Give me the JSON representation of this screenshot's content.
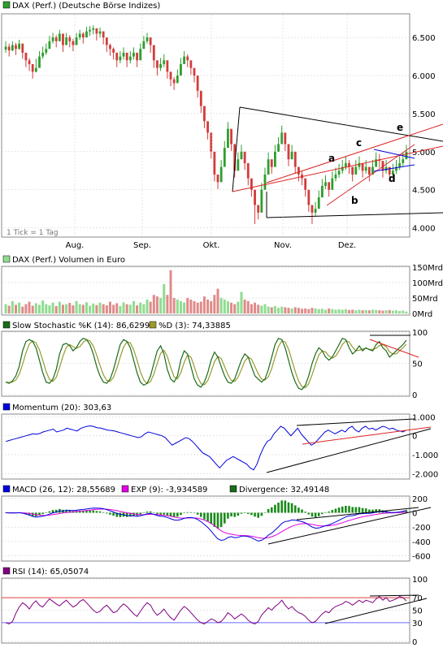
{
  "colors": {
    "up": "#2e9e2e",
    "down": "#d23c3c",
    "volume_up": "#8fdc8f",
    "volume_down": "#e08a8a",
    "stoch_k": "#1a6b1a",
    "stoch_d": "#9a9a2e",
    "blue": "#0000dd",
    "magenta": "#e000e0",
    "purple": "#800080",
    "trend": "#000000",
    "trend_red": "#dd2222",
    "rsi_70": "#e04040",
    "rsi_30": "#6a6aff",
    "grid": "#cccccc"
  },
  "chart_data": [
    {
      "type": "candlestick",
      "legend": "DAX (Perf.) (Deutsche Börse Indizes)",
      "note": "1 Tick = 1 Tag",
      "x_labels": [
        "Aug.",
        "Sep.",
        "Okt.",
        "Nov.",
        "Dez."
      ],
      "y_ticks": [
        "6.500",
        "6.000",
        "5.500",
        "5.000",
        "4.500",
        "4.000"
      ],
      "ylim": [
        3900,
        6800
      ],
      "annotations": [
        "a",
        "b",
        "c",
        "d",
        "e"
      ],
      "close": [
        6380,
        6330,
        6400,
        6350,
        6420,
        6300,
        6200,
        6150,
        6050,
        6100,
        6250,
        6300,
        6350,
        6450,
        6500,
        6450,
        6550,
        6400,
        6500,
        6450,
        6400,
        6500,
        6550,
        6500,
        6580,
        6600,
        6620,
        6550,
        6580,
        6500,
        6400,
        6350,
        6300,
        6200,
        6250,
        6300,
        6200,
        6250,
        6300,
        6200,
        6350,
        6450,
        6500,
        6400,
        6200,
        6100,
        6150,
        6200,
        6050,
        5950,
        5900,
        6000,
        6150,
        6250,
        6200,
        6100,
        6000,
        5800,
        5600,
        5400,
        5250,
        5000,
        4700,
        4600,
        4800,
        5050,
        5300,
        5100,
        4750,
        4900,
        5000,
        4850,
        4650,
        4500,
        4300,
        4200,
        4500,
        4700,
        4900,
        4800,
        5000,
        5100,
        5250,
        5100,
        4900,
        5000,
        4800,
        4700,
        4650,
        4500,
        4300,
        4200,
        4250,
        4400,
        4550,
        4600,
        4500,
        4650,
        4700,
        4750,
        4800,
        4850,
        4800,
        4700,
        4800,
        4850,
        4750,
        4800,
        4700,
        4800,
        4900,
        4880,
        4750,
        4800,
        4700,
        4750,
        4800,
        4850,
        4900,
        5000
      ],
      "high": [
        6450,
        6420,
        6450,
        6430,
        6470,
        6400,
        6280,
        6230,
        6130,
        6220,
        6320,
        6380,
        6420,
        6520,
        6560,
        6530,
        6600,
        6500,
        6560,
        6530,
        6480,
        6560,
        6600,
        6570,
        6640,
        6650,
        6660,
        6620,
        6630,
        6580,
        6480,
        6420,
        6370,
        6290,
        6320,
        6370,
        6280,
        6320,
        6370,
        6280,
        6420,
        6520,
        6560,
        6490,
        6290,
        6180,
        6230,
        6280,
        6130,
        6030,
        5980,
        6080,
        6230,
        6320,
        6280,
        6180,
        6080,
        5890,
        5690,
        5490,
        5340,
        5090,
        4790,
        4690,
        4890,
        5140,
        5390,
        5190,
        4840,
        4990,
        5090,
        4940,
        4740,
        4590,
        4390,
        4290,
        4590,
        4790,
        4990,
        4890,
        5090,
        5190,
        5340,
        5190,
        4990,
        5090,
        4890,
        4790,
        4740,
        4590,
        4390,
        4290,
        4340,
        4490,
        4640,
        4690,
        4590,
        4740,
        4790,
        4840,
        4890,
        4940,
        4890,
        4790,
        4890,
        4940,
        4840,
        4890,
        4790,
        4890,
        4990,
        4970,
        4840,
        4890,
        4790,
        4840,
        4890,
        4940,
        4990,
        5090
      ],
      "low": [
        6300,
        6250,
        6320,
        6270,
        6340,
        6220,
        6110,
        6060,
        5960,
        6040,
        6160,
        6220,
        6270,
        6370,
        6420,
        6370,
        6470,
        6310,
        6420,
        6370,
        6320,
        6410,
        6470,
        6420,
        6500,
        6520,
        6540,
        6460,
        6500,
        6410,
        6310,
        6260,
        6210,
        6110,
        6160,
        6210,
        6110,
        6160,
        6210,
        6110,
        6260,
        6360,
        6420,
        6300,
        6100,
        6000,
        6060,
        6110,
        5960,
        5860,
        5810,
        5910,
        6060,
        6160,
        6110,
        6010,
        5910,
        5710,
        5510,
        5310,
        5160,
        4910,
        4610,
        4510,
        4710,
        4960,
        5210,
        5010,
        4660,
        4810,
        4910,
        4760,
        4560,
        4410,
        4050,
        4110,
        4410,
        4610,
        4810,
        4710,
        4910,
        5010,
        5160,
        5010,
        4810,
        4910,
        4710,
        4610,
        4560,
        4410,
        4210,
        4050,
        4160,
        4310,
        4460,
        4510,
        4410,
        4560,
        4610,
        4660,
        4710,
        4760,
        4710,
        4610,
        4710,
        4760,
        4660,
        4710,
        4610,
        4710,
        4810,
        4790,
        4660,
        4710,
        4610,
        4660,
        4710,
        4760,
        4810,
        4910
      ]
    },
    {
      "type": "bar",
      "legend": "DAX (Perf.) Volumen in Euro",
      "y_ticks": [
        "150Mrd",
        "100Mrd",
        "50Mrd",
        "0Mrd"
      ],
      "ylim": [
        0,
        150
      ],
      "values": [
        30,
        25,
        40,
        28,
        35,
        22,
        30,
        38,
        25,
        33,
        28,
        42,
        30,
        26,
        35,
        24,
        38,
        28,
        30,
        34,
        26,
        40,
        30,
        28,
        36,
        25,
        32,
        27,
        35,
        30,
        26,
        38,
        28,
        33,
        24,
        36,
        30,
        28,
        40,
        26,
        35,
        30,
        45,
        38,
        60,
        55,
        50,
        95,
        60,
        140,
        50,
        45,
        40,
        35,
        50,
        45,
        40,
        35,
        38,
        55,
        45,
        40,
        60,
        80,
        50,
        45,
        40,
        35,
        30,
        38,
        70,
        45,
        40,
        30,
        35,
        28,
        25,
        30,
        22,
        20,
        24,
        18,
        22,
        20,
        18,
        16,
        20,
        18,
        15,
        16,
        14,
        18,
        16,
        14,
        15,
        12,
        16,
        14,
        12,
        13,
        12,
        14,
        11,
        12,
        10,
        12,
        10,
        11,
        10,
        12,
        11,
        10,
        9,
        10,
        11,
        9,
        10,
        8,
        9,
        6
      ]
    },
    {
      "type": "line",
      "legend_k": "Slow Stochastic %K (14): 86,6299",
      "legend_d": "%D (3): 74,33885",
      "y_ticks": [
        "100",
        "50",
        "0"
      ],
      "ylim": [
        0,
        100
      ],
      "series_k": [
        20,
        18,
        22,
        30,
        45,
        70,
        85,
        88,
        85,
        75,
        55,
        35,
        20,
        18,
        25,
        40,
        65,
        80,
        82,
        78,
        70,
        75,
        85,
        90,
        88,
        80,
        65,
        45,
        30,
        20,
        18,
        25,
        40,
        60,
        80,
        88,
        85,
        75,
        55,
        35,
        20,
        15,
        18,
        30,
        50,
        70,
        78,
        65,
        40,
        25,
        20,
        30,
        55,
        70,
        65,
        45,
        25,
        15,
        12,
        20,
        35,
        55,
        68,
        60,
        45,
        30,
        20,
        18,
        25,
        40,
        55,
        65,
        60,
        45,
        30,
        25,
        20,
        25,
        40,
        60,
        80,
        90,
        88,
        75,
        55,
        35,
        20,
        10,
        8,
        15,
        30,
        50,
        65,
        75,
        70,
        60,
        55,
        60,
        70,
        80,
        90,
        88,
        75,
        65,
        70,
        78,
        70,
        75,
        72,
        70,
        80,
        85,
        75,
        70,
        60,
        65,
        70,
        75,
        80,
        87
      ]
    },
    {
      "type": "line",
      "legend": "Momentum (20): 303,63",
      "y_ticks": [
        "1.000",
        "0",
        "-1.000",
        "-2.000"
      ],
      "ylim": [
        -2200,
        1100
      ],
      "values": [
        -300,
        -250,
        -200,
        -150,
        -100,
        -50,
        0,
        50,
        100,
        80,
        120,
        200,
        250,
        300,
        350,
        200,
        250,
        300,
        400,
        350,
        300,
        250,
        380,
        450,
        500,
        520,
        480,
        420,
        400,
        350,
        300,
        280,
        250,
        200,
        150,
        100,
        50,
        0,
        -50,
        -100,
        -50,
        100,
        200,
        150,
        100,
        50,
        0,
        -100,
        -300,
        -500,
        -400,
        -300,
        -200,
        -100,
        -150,
        -300,
        -500,
        -700,
        -900,
        -1000,
        -1100,
        -1300,
        -1500,
        -1700,
        -1500,
        -1300,
        -1200,
        -1100,
        -1200,
        -1300,
        -1400,
        -1500,
        -1700,
        -1800,
        -1500,
        -1000,
        -600,
        -300,
        -200,
        100,
        300,
        500,
        400,
        200,
        0,
        200,
        400,
        100,
        -100,
        -300,
        -500,
        -400,
        -200,
        0,
        200,
        300,
        200,
        100,
        200,
        300,
        200,
        400,
        500,
        300,
        200,
        400,
        500,
        350,
        400,
        300,
        400,
        500,
        450,
        350,
        400,
        300,
        250,
        200,
        300
      ]
    },
    {
      "type": "line",
      "legend_macd": "MACD (26, 12): 28,55689",
      "legend_exp": "EXP (9): -3,934589",
      "legend_div": "Divergence: 32,49148",
      "y_ticks": [
        "200",
        "0",
        "-200",
        "-400",
        "-600"
      ],
      "ylim": [
        -650,
        220
      ]
    },
    {
      "type": "line",
      "legend": "RSI (14): 65,05074",
      "y_ticks": [
        "100",
        "70",
        "50",
        "30",
        "0"
      ],
      "ylim": [
        0,
        100
      ],
      "values": [
        30,
        28,
        32,
        45,
        55,
        62,
        58,
        52,
        60,
        65,
        58,
        55,
        62,
        68,
        64,
        60,
        57,
        62,
        66,
        60,
        55,
        58,
        64,
        67,
        62,
        56,
        50,
        46,
        48,
        54,
        58,
        52,
        46,
        48,
        55,
        60,
        56,
        50,
        44,
        40,
        48,
        56,
        62,
        58,
        48,
        42,
        46,
        52,
        44,
        38,
        34,
        42,
        50,
        56,
        52,
        46,
        40,
        34,
        30,
        28,
        32,
        36,
        34,
        30,
        32,
        38,
        46,
        42,
        36,
        40,
        44,
        40,
        34,
        30,
        28,
        32,
        42,
        48,
        54,
        50,
        56,
        60,
        66,
        58,
        52,
        56,
        50,
        46,
        44,
        40,
        34,
        30,
        32,
        38,
        44,
        48,
        46,
        52,
        56,
        58,
        60,
        64,
        62,
        58,
        62,
        66,
        62,
        66,
        64,
        62,
        68,
        72,
        66,
        70,
        64,
        66,
        68,
        72,
        70,
        65
      ]
    }
  ]
}
